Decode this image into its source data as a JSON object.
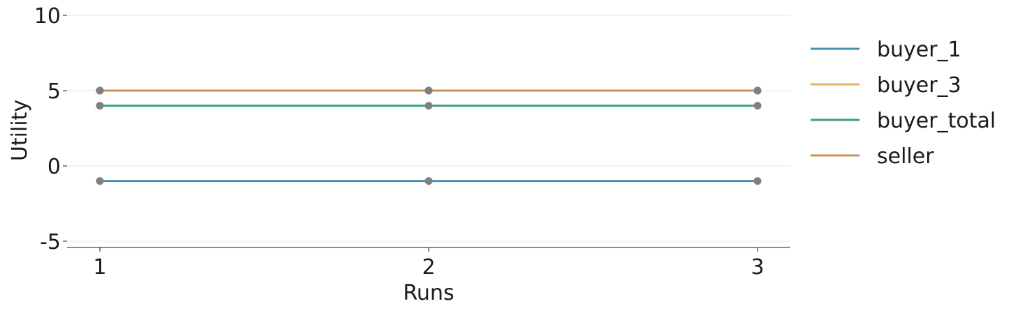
{
  "chart_data": {
    "type": "line",
    "title": "",
    "xlabel": "Runs",
    "ylabel": "Utility",
    "x": [
      1,
      2,
      3
    ],
    "xticks": [
      "1",
      "2",
      "3"
    ],
    "yticks": [
      "-5",
      "0",
      "5",
      "10"
    ],
    "ytick_values": [
      -5,
      0,
      5,
      10
    ],
    "xlim": [
      0.9,
      3.1
    ],
    "ylim": [
      -5.5,
      10.5
    ],
    "grid": "horizontal",
    "legend_position": "right",
    "marker_color": "#808080",
    "series": [
      {
        "name": "buyer_1",
        "values": [
          -1,
          -1,
          -1
        ],
        "color": "#4a8fb0"
      },
      {
        "name": "buyer_3",
        "values": [
          5,
          5,
          5
        ],
        "color": "#e3b25c"
      },
      {
        "name": "buyer_total",
        "values": [
          4,
          4,
          4
        ],
        "color": "#3a9e82"
      },
      {
        "name": "seller",
        "values": [
          5,
          5,
          5
        ],
        "color": "#c9935a"
      }
    ]
  }
}
